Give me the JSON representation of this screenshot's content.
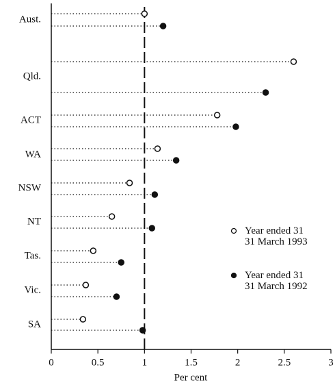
{
  "chart_data": {
    "type": "dot",
    "x_label": "Per cent",
    "categories": [
      "Aust.",
      "Qld.",
      "ACT",
      "WA",
      "NSW",
      "NT",
      "Tas.",
      "Vic.",
      "SA"
    ],
    "series": [
      {
        "name": "Year ended 31\n31 March 1993",
        "marker": "open",
        "color": "#111111",
        "values": [
          1.0,
          2.6,
          1.78,
          1.14,
          0.84,
          0.65,
          0.45,
          0.37,
          0.34
        ]
      },
      {
        "name": "Year ended 31\n31 March 1992",
        "marker": "filled",
        "color": "#111111",
        "values": [
          1.2,
          2.3,
          1.98,
          1.34,
          1.11,
          1.08,
          0.75,
          0.7,
          0.98
        ]
      }
    ],
    "xlim": [
      0,
      3
    ],
    "xticks": [
      0,
      0.5,
      1,
      1.5,
      2,
      2.5,
      3
    ],
    "reference_line": 1
  }
}
